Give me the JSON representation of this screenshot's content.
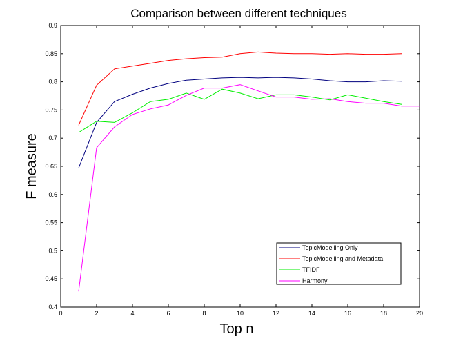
{
  "chart_data": {
    "type": "line",
    "title": "Comparison between different techniques",
    "xlabel": "Top n",
    "ylabel": "F measure",
    "xlim": [
      0,
      20
    ],
    "ylim": [
      0.4,
      0.9
    ],
    "xticks": [
      0,
      2,
      4,
      6,
      8,
      10,
      12,
      14,
      16,
      18,
      20
    ],
    "yticks": [
      0.4,
      0.45,
      0.5,
      0.55,
      0.6,
      0.65,
      0.7,
      0.75,
      0.8,
      0.85,
      0.9
    ],
    "xtick_labels": [
      "0",
      "2",
      "4",
      "6",
      "8",
      "10",
      "12",
      "14",
      "16",
      "18",
      "20"
    ],
    "ytick_labels": [
      "0.4",
      "0.45",
      "0.5",
      "0.55",
      "0.6",
      "0.65",
      "0.7",
      "0.75",
      "0.8",
      "0.85",
      "0.9"
    ],
    "grid": false,
    "legend_position": "bottom-right",
    "x": [
      1,
      2,
      3,
      4,
      5,
      6,
      7,
      8,
      9,
      10,
      11,
      12,
      13,
      14,
      15,
      16,
      17,
      18,
      19
    ],
    "series": [
      {
        "name": "TopicModelling Only",
        "color": "#00007f",
        "values": [
          0.647,
          0.728,
          0.765,
          0.778,
          0.789,
          0.797,
          0.803,
          0.805,
          0.807,
          0.808,
          0.807,
          0.808,
          0.807,
          0.805,
          0.802,
          0.8,
          0.8,
          0.802,
          0.801
        ]
      },
      {
        "name": "TopicModelling and Metadata",
        "color": "#ff0000",
        "values": [
          0.723,
          0.794,
          0.823,
          0.828,
          0.833,
          0.838,
          0.841,
          0.843,
          0.844,
          0.85,
          0.853,
          0.851,
          0.85,
          0.85,
          0.849,
          0.85,
          0.849,
          0.849,
          0.85
        ]
      },
      {
        "name": "TFIDF",
        "color": "#00ee00",
        "values": [
          0.71,
          0.73,
          0.728,
          0.745,
          0.765,
          0.769,
          0.78,
          0.769,
          0.787,
          0.78,
          0.77,
          0.777,
          0.777,
          0.773,
          0.768,
          0.777,
          0.771,
          0.765,
          0.76
        ]
      },
      {
        "name": "Harmony",
        "color": "#ff00ff",
        "values": [
          0.428,
          0.683,
          0.72,
          0.742,
          0.752,
          0.759,
          0.776,
          0.789,
          0.789,
          0.795,
          0.784,
          0.773,
          0.773,
          0.769,
          0.77,
          0.765,
          0.762,
          0.762,
          0.757
        ]
      }
    ],
    "tail_point": {
      "series": "Harmony",
      "x": 20,
      "y": 0.757
    }
  }
}
